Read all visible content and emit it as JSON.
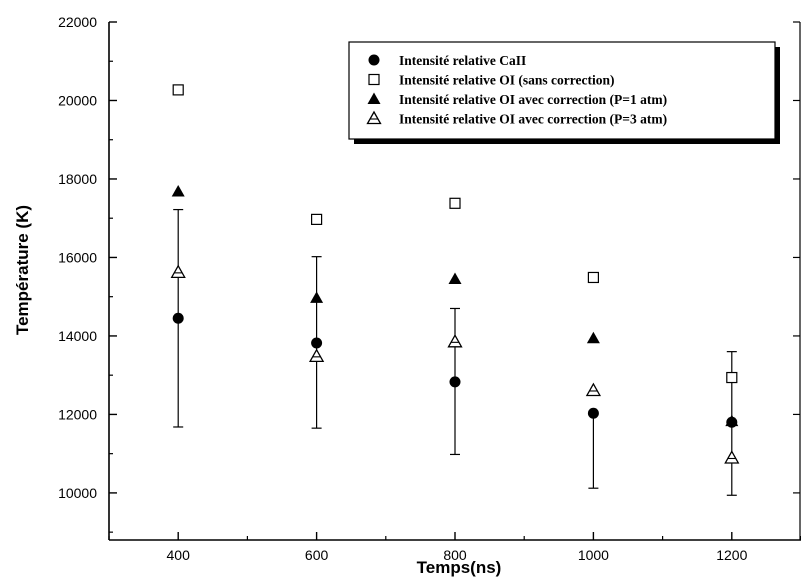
{
  "chart_data": {
    "type": "scatter",
    "xlabel": "Temps(ns)",
    "ylabel": "Température (K)",
    "xlim": [
      300,
      1300
    ],
    "ylim": [
      8800,
      22000
    ],
    "x_ticks": [
      400,
      600,
      800,
      1000,
      1200
    ],
    "y_ticks": [
      10000,
      12000,
      14000,
      16000,
      18000,
      20000,
      22000
    ],
    "grid": false,
    "legend_position": "top-right",
    "series": [
      {
        "name": "Intensité relative CaII",
        "marker": "filled-circle",
        "x": [
          400,
          600,
          800,
          1000,
          1200
        ],
        "y": [
          14450,
          13820,
          12830,
          12030,
          11800
        ],
        "error_low": [
          11680,
          11650,
          10980,
          10120,
          9940
        ],
        "error_high": [
          17220,
          16020,
          14700,
          null,
          13600
        ]
      },
      {
        "name": "Intensité relative OI (sans correction)",
        "marker": "open-square",
        "x": [
          400,
          600,
          800,
          1000,
          1200
        ],
        "y": [
          20270,
          16970,
          17380,
          15490,
          12940
        ]
      },
      {
        "name": "Intensité relative OI avec correction (P=1 atm)",
        "marker": "filled-triangle",
        "x": [
          400,
          600,
          800,
          1000,
          1200
        ],
        "y": [
          17680,
          14970,
          15450,
          13940,
          11830
        ]
      },
      {
        "name": "Intensité relative OI avec correction (P=3 atm)",
        "marker": "open-triangle",
        "x": [
          400,
          600,
          800,
          1000,
          1200
        ],
        "y": [
          15620,
          13480,
          13850,
          12610,
          10890
        ]
      }
    ]
  }
}
